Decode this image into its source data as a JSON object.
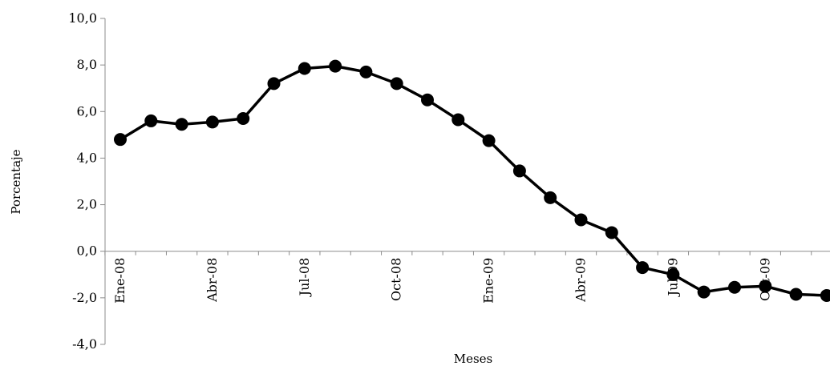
{
  "chart_data": {
    "type": "line",
    "title": "",
    "xlabel": "Meses",
    "ylabel": "Porcentaje",
    "ylim": [
      -4,
      10
    ],
    "yticks": [
      -4,
      -2,
      0,
      2,
      4,
      6,
      8,
      10
    ],
    "ytick_labels": [
      "-4,0",
      "-2,0",
      "0,0",
      "2,0",
      "4,0",
      "6,0",
      "8,0",
      "10,0"
    ],
    "x": [
      "Ene-08",
      "Feb-08",
      "Mar-08",
      "Abr-08",
      "May-08",
      "Jun-08",
      "Jul-08",
      "Ago-08",
      "Sep-08",
      "Oct-08",
      "Nov-08",
      "Dic-08",
      "Ene-09",
      "Feb-09",
      "Mar-09",
      "Abr-09",
      "May-09",
      "Jun-09",
      "Jul-09",
      "Ago-09",
      "Sep-09",
      "Oct-09",
      "Nov-09",
      "Dic-09"
    ],
    "xtick_labels": [
      {
        "index": 0,
        "label": "Ene-08"
      },
      {
        "index": 3,
        "label": "Abr-08"
      },
      {
        "index": 6,
        "label": "Jul-08"
      },
      {
        "index": 9,
        "label": "Oct-08"
      },
      {
        "index": 12,
        "label": "Ene-09"
      },
      {
        "index": 15,
        "label": "Abr-09"
      },
      {
        "index": 18,
        "label": "Jul-09"
      },
      {
        "index": 21,
        "label": "Oct-09"
      }
    ],
    "series": [
      {
        "values": [
          4.8,
          5.6,
          5.45,
          5.55,
          5.7,
          7.2,
          7.85,
          7.95,
          7.7,
          7.2,
          6.5,
          5.65,
          4.75,
          3.45,
          2.3,
          1.35,
          0.8,
          -0.7,
          -1.0,
          -1.75,
          -1.55,
          -1.5,
          -1.85,
          -1.9
        ],
        "color": "#000000"
      }
    ],
    "grid": false,
    "legend": "none"
  }
}
